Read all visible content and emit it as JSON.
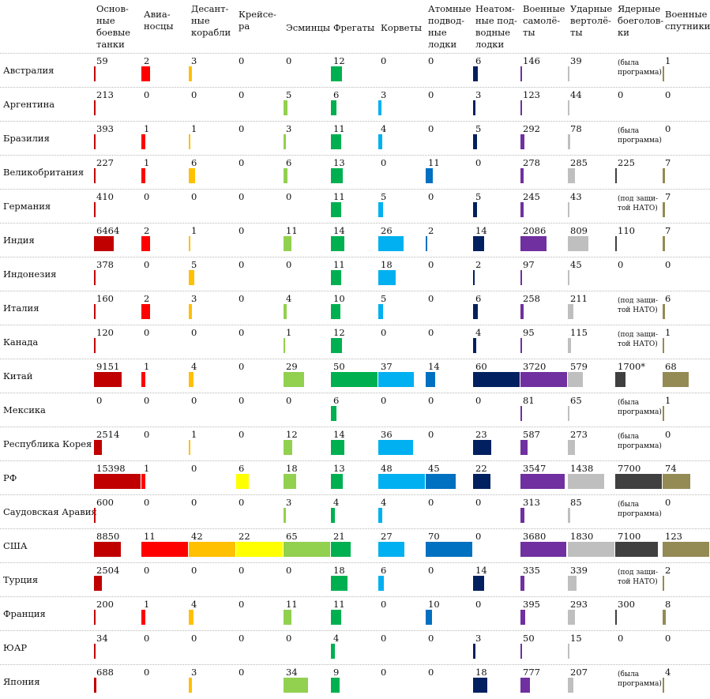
{
  "chart_data": {
    "type": "table",
    "columns": [
      {
        "key": "tanks",
        "label": "Основ-\nные\nбоевые\nтанки",
        "color": "#c00000"
      },
      {
        "key": "carriers",
        "label": "Авиа-\nносцы",
        "color": "#ff0000"
      },
      {
        "key": "landing",
        "label": "Десант-\nные\nкорабли",
        "color": "#ffc000"
      },
      {
        "key": "cruisers",
        "label": "Крейсе-\nра",
        "color": "#ffff00"
      },
      {
        "key": "destroyers",
        "label": "Эсминцы",
        "color": "#92d050"
      },
      {
        "key": "frigates",
        "label": "Фрегаты",
        "color": "#00b050"
      },
      {
        "key": "corvettes",
        "label": "Корветы",
        "color": "#00b0f0"
      },
      {
        "key": "nuclear_subs",
        "label": "Атомные\nподвод-\nные\nлодки",
        "color": "#0070c0"
      },
      {
        "key": "conv_subs",
        "label": "Неатом-\nные под-\nводные\nлодки",
        "color": "#002060"
      },
      {
        "key": "aircraft",
        "label": "Военные\nсамолё-\nты",
        "color": "#7030a0"
      },
      {
        "key": "helicopters",
        "label": "Ударные\nвертолё-\nты",
        "color": "#bfbfbf"
      },
      {
        "key": "warheads",
        "label": "Ядерные\nбоеголов-\nки",
        "color": "#404040"
      },
      {
        "key": "satellites",
        "label": "Военные\nспутники",
        "color": "#948a54"
      }
    ],
    "rows": [
      {
        "country": "Австралия",
        "values": [
          "59",
          "2",
          "3",
          "0",
          "0",
          "12",
          "0",
          "0",
          "6",
          "146",
          "39",
          "(была\nпрограмма)",
          "1"
        ]
      },
      {
        "country": "Аргентина",
        "values": [
          "213",
          "0",
          "0",
          "0",
          "5",
          "6",
          "3",
          "0",
          "3",
          "123",
          "44",
          "0",
          "0"
        ]
      },
      {
        "country": "Бразилия",
        "values": [
          "393",
          "1",
          "1",
          "0",
          "3",
          "11",
          "4",
          "0",
          "5",
          "292",
          "78",
          "(была\nпрограмма)",
          "0"
        ]
      },
      {
        "country": "Великобритания",
        "values": [
          "227",
          "1",
          "6",
          "0",
          "6",
          "13",
          "0",
          "11",
          "0",
          "278",
          "285",
          "225",
          "7"
        ]
      },
      {
        "country": "Германия",
        "values": [
          "410",
          "0",
          "0",
          "0",
          "0",
          "11",
          "5",
          "0",
          "5",
          "245",
          "43",
          "(под защи-\nтой НАТО)",
          "7"
        ]
      },
      {
        "country": "Индия",
        "values": [
          "6464",
          "2",
          "1",
          "0",
          "11",
          "14",
          "26",
          "2",
          "14",
          "2086",
          "809",
          "110",
          "7"
        ]
      },
      {
        "country": "Индонезия",
        "values": [
          "378",
          "0",
          "5",
          "0",
          "0",
          "11",
          "18",
          "0",
          "2",
          "97",
          "45",
          "0",
          "0"
        ]
      },
      {
        "country": "Италия",
        "values": [
          "160",
          "2",
          "3",
          "0",
          "4",
          "10",
          "5",
          "0",
          "6",
          "258",
          "211",
          "(под защи-\nтой НАТО)",
          "6"
        ]
      },
      {
        "country": "Канада",
        "values": [
          "120",
          "0",
          "0",
          "0",
          "1",
          "12",
          "0",
          "0",
          "4",
          "95",
          "115",
          "(под защи-\nтой НАТО)",
          "1"
        ]
      },
      {
        "country": "Китай",
        "values": [
          "9151",
          "1",
          "4",
          "0",
          "29",
          "50",
          "37",
          "14",
          "60",
          "3720",
          "579",
          "1700*",
          "68"
        ]
      },
      {
        "country": "Мексика",
        "values": [
          "0",
          "0",
          "0",
          "0",
          "0",
          "6",
          "0",
          "0",
          "0",
          "81",
          "65",
          "(была\nпрограмма)",
          "1"
        ]
      },
      {
        "country": "Республика Корея",
        "values": [
          "2514",
          "0",
          "1",
          "0",
          "12",
          "14",
          "36",
          "0",
          "23",
          "587",
          "273",
          "(была\nпрограмма)",
          "0"
        ]
      },
      {
        "country": "РФ",
        "values": [
          "15398",
          "1",
          "0",
          "6",
          "18",
          "13",
          "48",
          "45",
          "22",
          "3547",
          "1438",
          "7700",
          "74"
        ]
      },
      {
        "country": "Саудовская Аравия",
        "values": [
          "600",
          "0",
          "0",
          "0",
          "3",
          "4",
          "4",
          "0",
          "0",
          "313",
          "85",
          "(была\nпрограмма)",
          "0"
        ]
      },
      {
        "country": "США",
        "values": [
          "8850",
          "11",
          "42",
          "22",
          "65",
          "21",
          "27",
          "70",
          "0",
          "3680",
          "1830",
          "7100",
          "123"
        ]
      },
      {
        "country": "Турция",
        "values": [
          "2504",
          "0",
          "0",
          "0",
          "0",
          "18",
          "6",
          "0",
          "14",
          "335",
          "339",
          "(под защи-\nтой НАТО)",
          "2"
        ]
      },
      {
        "country": "Франция",
        "values": [
          "200",
          "1",
          "4",
          "0",
          "11",
          "11",
          "0",
          "10",
          "0",
          "395",
          "293",
          "300",
          "8"
        ]
      },
      {
        "country": "ЮАР",
        "values": [
          "34",
          "0",
          "0",
          "0",
          "0",
          "4",
          "0",
          "0",
          "3",
          "50",
          "15",
          "0",
          "0"
        ]
      },
      {
        "country": "Япония",
        "values": [
          "688",
          "0",
          "3",
          "0",
          "34",
          "9",
          "0",
          "0",
          "18",
          "777",
          "207",
          "(была\nпрограмма)",
          "4"
        ]
      }
    ]
  }
}
